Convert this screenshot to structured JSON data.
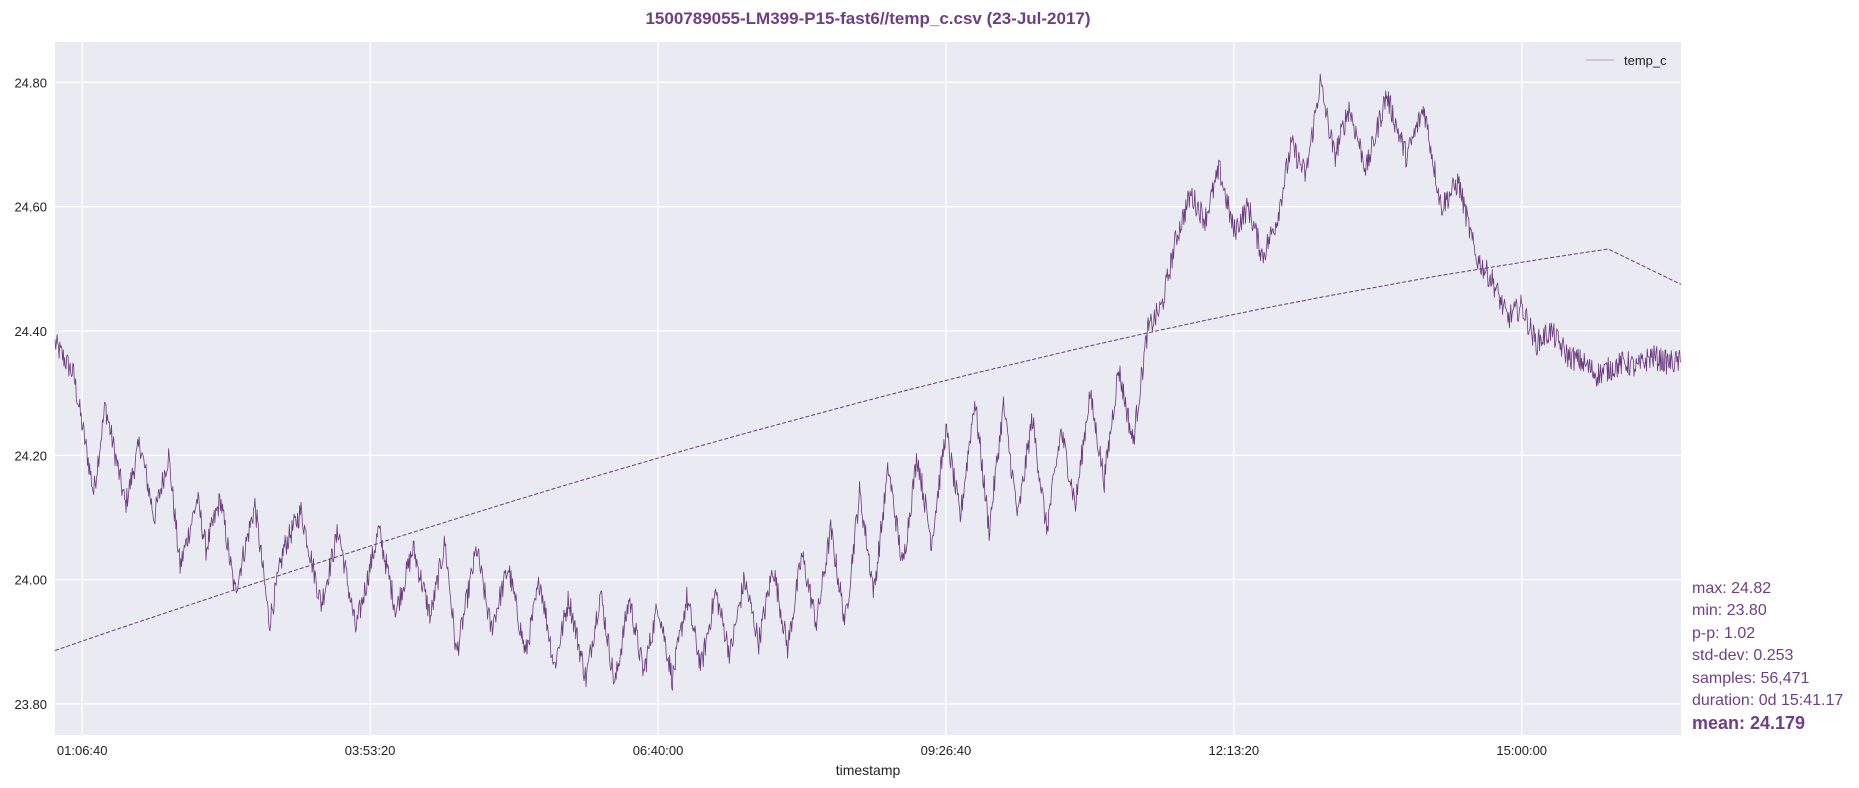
{
  "chart_data": {
    "type": "line",
    "title": "1500789055-LM399-P15-fast6//temp_c.csv (23-Jul-2017)",
    "xlabel": "timestamp",
    "ylabel": "",
    "x_ticks": [
      "01:06:40",
      "03:53:20",
      "06:40:00",
      "09:26:40",
      "12:13:20",
      "15:00:00"
    ],
    "x_tick_seconds": [
      4000,
      14000,
      24000,
      34000,
      44000,
      54000
    ],
    "xlim_seconds": [
      3055,
      59532
    ],
    "y_ticks": [
      "23.80",
      "24.00",
      "24.20",
      "24.40",
      "24.60",
      "24.80"
    ],
    "ylim": [
      23.75,
      24.865
    ],
    "grid": true,
    "legend": {
      "placement": "top-right",
      "entries": [
        "temp_c"
      ]
    },
    "colors": {
      "line": "#6a3a7f",
      "plot_bg": "#eaeaf2",
      "grid": "#ffffff",
      "text_accent": "#6f3f86"
    },
    "series": [
      {
        "name": "temp_c",
        "x_seconds": [
          3055,
          3700,
          4400,
          4800,
          5500,
          6000,
          6500,
          7000,
          7400,
          8000,
          8300,
          8800,
          9300,
          10000,
          10500,
          11000,
          11600,
          12300,
          12900,
          13500,
          14000,
          14300,
          14900,
          15500,
          16100,
          16600,
          17000,
          17700,
          18200,
          18800,
          19400,
          19900,
          20400,
          20900,
          21500,
          22000,
          22500,
          23000,
          23500,
          24000,
          24500,
          25000,
          25500,
          26000,
          26500,
          27000,
          27500,
          28000,
          28500,
          29000,
          29500,
          30000,
          30500,
          31000,
          31500,
          32000,
          32500,
          33000,
          33500,
          34000,
          34500,
          35000,
          35500,
          36000,
          36500,
          37000,
          37500,
          38000,
          38500,
          39000,
          39500,
          40000,
          40500,
          41000,
          41500,
          42000,
          42500,
          43000,
          43500,
          44000,
          44500,
          45000,
          45500,
          46000,
          46500,
          47000,
          47500,
          48000,
          48600,
          49300,
          50000,
          50600,
          51200,
          51800,
          52400,
          53000,
          53500,
          54000,
          54500,
          55000,
          55600,
          56100,
          56600,
          57100,
          57600,
          58000,
          58500,
          59000,
          59532
        ],
        "y": [
          24.38,
          24.33,
          24.14,
          24.28,
          24.12,
          24.22,
          24.1,
          24.2,
          24.02,
          24.13,
          24.05,
          24.13,
          23.98,
          24.12,
          23.93,
          24.05,
          24.11,
          23.96,
          24.08,
          23.92,
          24.02,
          24.08,
          23.95,
          24.05,
          23.94,
          24.06,
          23.88,
          24.05,
          23.92,
          24.02,
          23.88,
          24.0,
          23.86,
          23.97,
          23.84,
          23.98,
          23.83,
          23.97,
          23.85,
          23.96,
          23.84,
          23.97,
          23.86,
          23.98,
          23.88,
          24.0,
          23.9,
          24.02,
          23.89,
          24.04,
          23.93,
          24.08,
          23.93,
          24.14,
          23.98,
          24.18,
          24.02,
          24.2,
          24.06,
          24.24,
          24.1,
          24.29,
          24.08,
          24.28,
          24.1,
          24.26,
          24.08,
          24.24,
          24.12,
          24.3,
          24.16,
          24.34,
          24.22,
          24.4,
          24.44,
          24.55,
          24.62,
          24.58,
          24.66,
          24.56,
          24.6,
          24.52,
          24.58,
          24.7,
          24.65,
          24.8,
          24.68,
          24.76,
          24.66,
          24.78,
          24.68,
          24.76,
          24.6,
          24.64,
          24.52,
          24.48,
          24.42,
          24.44,
          24.38,
          24.4,
          24.36,
          24.35,
          24.33,
          24.34,
          24.35,
          24.34,
          24.36,
          24.35,
          24.35
        ],
        "noise": 0.02
      },
      {
        "name": "",
        "style": "dashed",
        "x_seconds": [
          3055,
          5000,
          7000,
          9000,
          11000,
          13000,
          15000,
          17000,
          19000,
          21000,
          23000,
          25000,
          27000,
          29000,
          31000,
          33000,
          35000,
          37000,
          39000,
          41000,
          43000,
          45000,
          47000,
          49000,
          51000,
          53000,
          55000,
          57000,
          59532
        ],
        "y": [
          23.886,
          23.917,
          23.948,
          23.979,
          24.009,
          24.039,
          24.069,
          24.098,
          24.127,
          24.155,
          24.182,
          24.209,
          24.235,
          24.26,
          24.285,
          24.309,
          24.332,
          24.354,
          24.376,
          24.397,
          24.417,
          24.436,
          24.454,
          24.471,
          24.488,
          24.503,
          24.518,
          24.532,
          24.475
        ]
      }
    ]
  },
  "stats": {
    "max": "max: 24.82",
    "min": "min: 23.80",
    "pp": "p-p: 1.02",
    "stddev": "std-dev: 0.253",
    "samples": "samples: 56,471",
    "duration": "duration: 0d 15:41.17",
    "mean": "mean: 24.179"
  }
}
